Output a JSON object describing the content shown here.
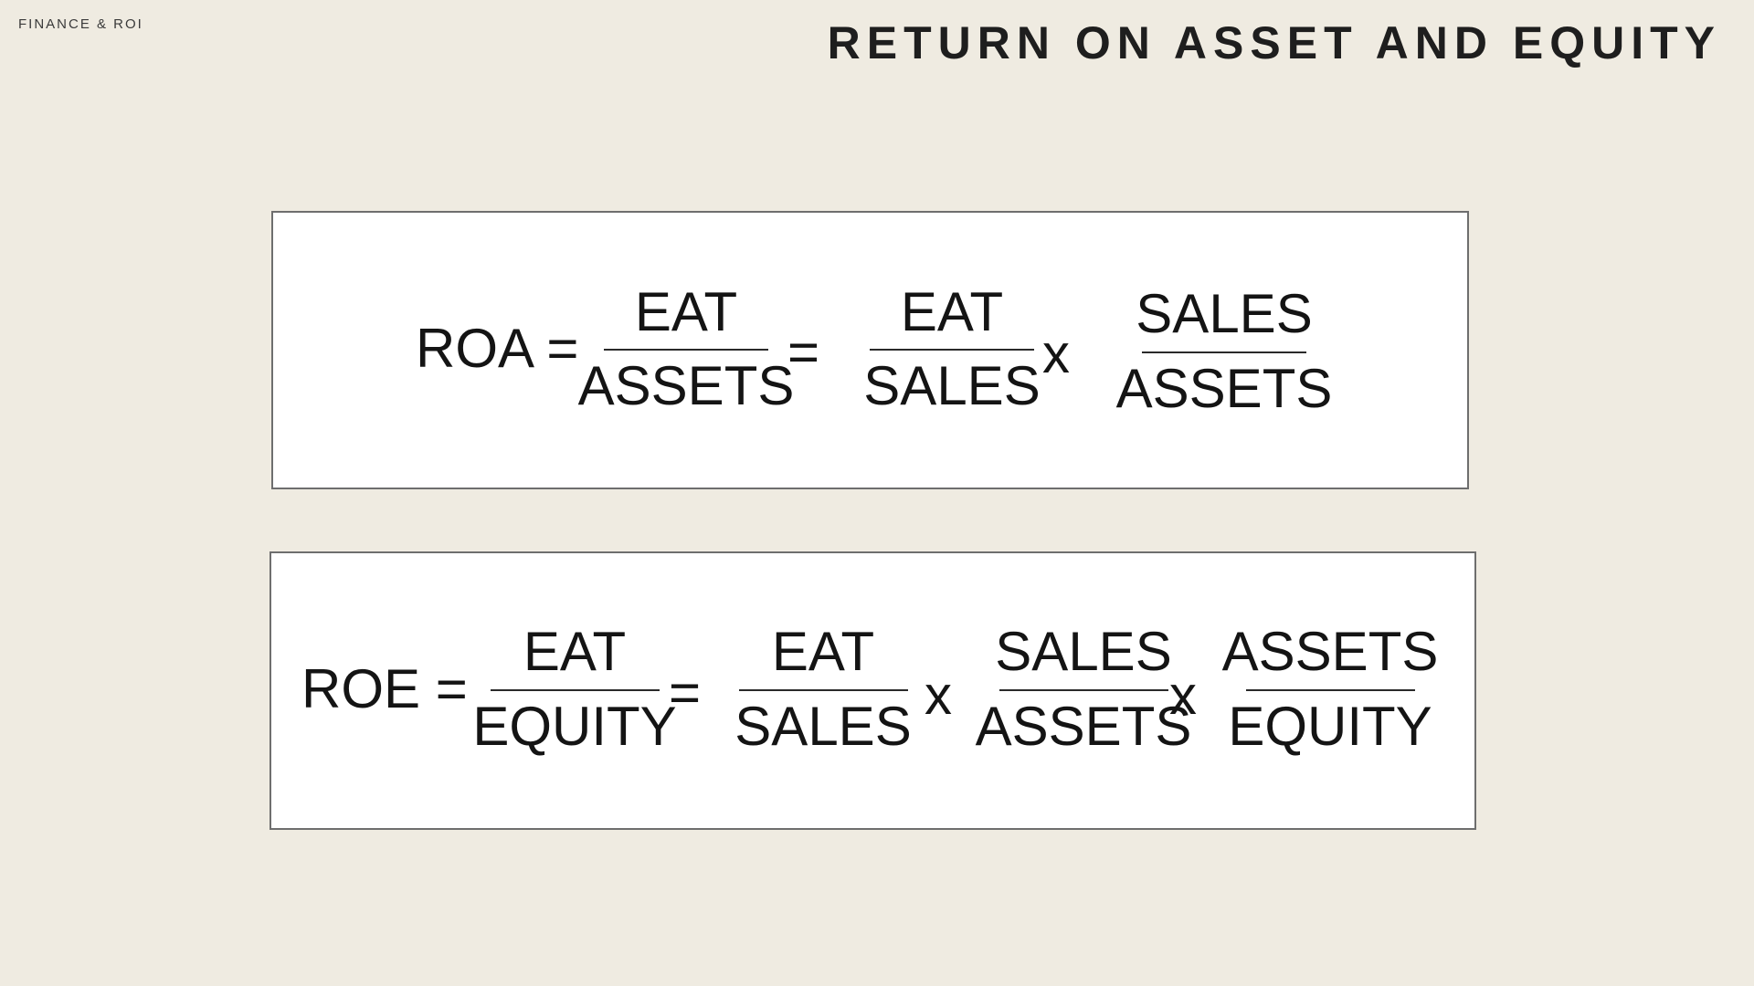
{
  "header": {
    "kicker": "FINANCE & ROI",
    "title": "RETURN ON ASSET AND EQUITY"
  },
  "roa": {
    "label": "ROA =",
    "f1": {
      "num": "EAT",
      "den": "ASSETS"
    },
    "eq": "=",
    "f2": {
      "num": "EAT",
      "den": "SALES"
    },
    "times": "x",
    "f3": {
      "num": "SALES",
      "den": "ASSETS"
    }
  },
  "roe": {
    "label": "ROE =",
    "f1": {
      "num": "EAT",
      "den": "EQUITY"
    },
    "eq": "=",
    "f2": {
      "num": "EAT",
      "den": "SALES"
    },
    "times1": "x",
    "f3": {
      "num": "SALES",
      "den": "ASSETS"
    },
    "times2": "x",
    "f4": {
      "num": "ASSETS",
      "den": "EQUITY"
    }
  }
}
